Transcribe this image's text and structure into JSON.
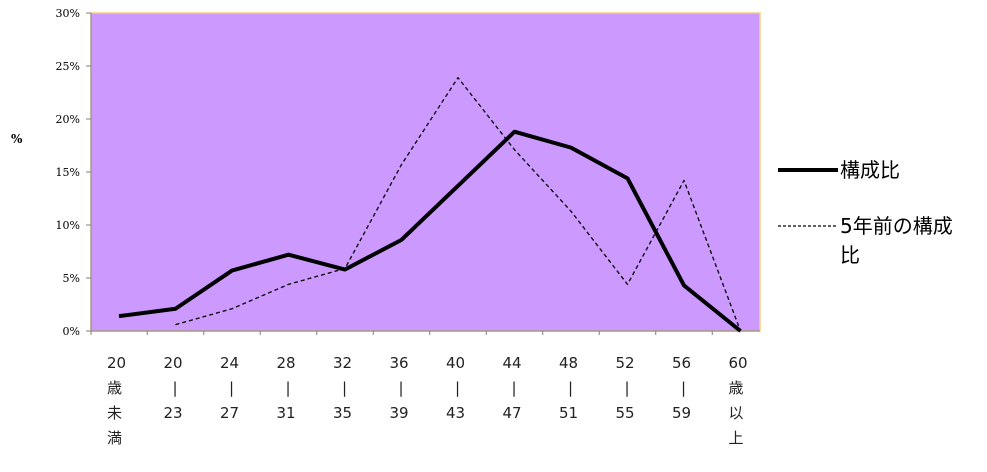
{
  "chart_data": {
    "type": "line",
    "ylabel": "%",
    "ylim": [
      0,
      30
    ],
    "y_ticks": [
      "0%",
      "5%",
      "10%",
      "15%",
      "20%",
      "25%",
      "30%"
    ],
    "categories": [
      [
        "20",
        "歳",
        "未",
        "満"
      ],
      [
        "20",
        "|",
        "23"
      ],
      [
        "24",
        "|",
        "27"
      ],
      [
        "28",
        "|",
        "31"
      ],
      [
        "32",
        "|",
        "35"
      ],
      [
        "36",
        "|",
        "39"
      ],
      [
        "40",
        "|",
        "43"
      ],
      [
        "44",
        "|",
        "47"
      ],
      [
        "48",
        "|",
        "51"
      ],
      [
        "52",
        "|",
        "55"
      ],
      [
        "56",
        "|",
        "59"
      ],
      [
        "60",
        "歳",
        "以",
        "上"
      ]
    ],
    "series": [
      {
        "name": "構成比",
        "style": "solid",
        "color": "#000000",
        "values": [
          1.4,
          2.1,
          5.7,
          7.2,
          5.8,
          8.6,
          13.7,
          18.8,
          17.3,
          14.4,
          4.3,
          0.0
        ]
      },
      {
        "name": "5年前の構成比",
        "name_lines": [
          "5年前の構成",
          "比"
        ],
        "style": "dashed",
        "color": "#000000",
        "values": [
          null,
          0.6,
          2.1,
          4.4,
          5.9,
          15.7,
          23.9,
          17.1,
          11.3,
          4.4,
          14.2,
          0.0
        ]
      }
    ],
    "plot_background": "#cc99ff",
    "plot_border": "#f5d07a",
    "grid": false,
    "legend_position": "right"
  }
}
